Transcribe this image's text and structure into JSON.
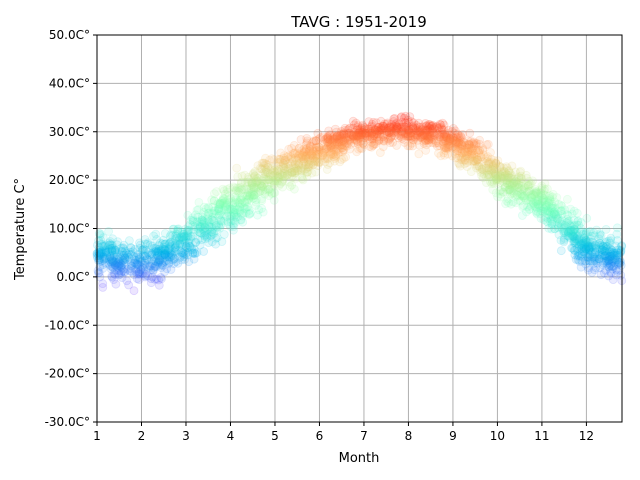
{
  "chart_data": {
    "type": "scatter",
    "title": "TAVG : 1951-2019",
    "xlabel": "Month",
    "ylabel": "Temperature C°",
    "xlim": [
      1,
      12.8
    ],
    "ylim": [
      -30,
      50
    ],
    "x_ticks": [
      1,
      2,
      3,
      4,
      5,
      6,
      7,
      8,
      9,
      10,
      11,
      12
    ],
    "x_tick_labels": [
      "1",
      "2",
      "3",
      "4",
      "5",
      "6",
      "7",
      "8",
      "9",
      "10",
      "11",
      "12"
    ],
    "y_ticks": [
      -30,
      -20,
      -10,
      0,
      10,
      20,
      30,
      40,
      50
    ],
    "y_tick_labels": [
      "-30.0C°",
      "-20.0C°",
      "-10.0C°",
      "0.0C°",
      "10.0C°",
      "20.0C°",
      "30.0C°",
      "40.0C°",
      "50.0C°"
    ],
    "grid": true,
    "colormap": "rainbow",
    "color_range": [
      -5,
      35
    ],
    "point_alpha": 0.12,
    "seasonal_profile": {
      "x": [
        1,
        1.5,
        2,
        2.5,
        3,
        3.5,
        4,
        4.5,
        5,
        5.5,
        6,
        6.5,
        7,
        7.5,
        8,
        8.5,
        9,
        9.5,
        10,
        10.5,
        11,
        11.5,
        12,
        12.5,
        12.8
      ],
      "mean": [
        5,
        3.5,
        3,
        5,
        7.5,
        11,
        15,
        18,
        21,
        23.5,
        26,
        28,
        29.5,
        30,
        30,
        29.5,
        27.5,
        25,
        21,
        18,
        16,
        11,
        6,
        4.5,
        4.5
      ],
      "spread": [
        6,
        6,
        6,
        6,
        6,
        6,
        6,
        6,
        5.5,
        5,
        4.5,
        4,
        3.5,
        3.5,
        3.5,
        3.5,
        4,
        4.5,
        5,
        5,
        5,
        5.5,
        6,
        6,
        6
      ]
    },
    "samples_per_month": 210
  }
}
